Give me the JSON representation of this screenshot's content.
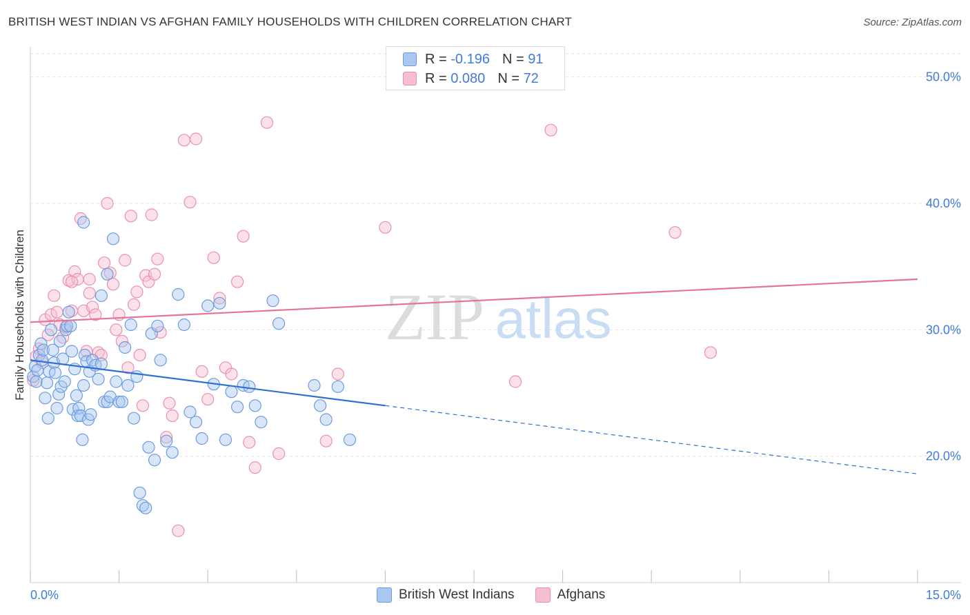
{
  "title": "BRITISH WEST INDIAN VS AFGHAN FAMILY HOUSEHOLDS WITH CHILDREN CORRELATION CHART",
  "source": "Source: ZipAtlas.com",
  "watermark": {
    "zip": "ZIP",
    "atlas": "atlas"
  },
  "legend": {
    "rows": [
      {
        "r_label": "R =",
        "r_value": "-0.196",
        "n_label": "N =",
        "n_value": "91"
      },
      {
        "r_label": "R =",
        "r_value": "0.080",
        "n_label": "N =",
        "n_value": "72"
      }
    ]
  },
  "colors": {
    "blue_fill": "#a9c7f0",
    "blue_stroke": "#6b9be0",
    "blue_line": "#2e6fd3",
    "pink_fill": "#f6bfd0",
    "pink_stroke": "#ea8fae",
    "pink_line": "#e5739a",
    "tick_label": "#3f7bd8",
    "grid": "#e3e3e3"
  },
  "chart_data": {
    "type": "scatter",
    "title": "BRITISH WEST INDIAN VS AFGHAN FAMILY HOUSEHOLDS WITH CHILDREN CORRELATION CHART",
    "xlabel": "",
    "ylabel": "Family Households with Children",
    "xlim": [
      0,
      15
    ],
    "ylim": [
      10,
      52
    ],
    "x_tick_labels": [
      "0.0%",
      "15.0%"
    ],
    "y_ticks": [
      20,
      30,
      40,
      50
    ],
    "y_tick_labels": [
      "20.0%",
      "30.0%",
      "40.0%",
      "50.0%"
    ],
    "grid": true,
    "legend_position": "top-center",
    "series": [
      {
        "name": "British West Indians",
        "color": "#a9c7f0",
        "trend": {
          "x0": 0,
          "y0": 27.6,
          "x1": 15,
          "y1": 18.6,
          "solid_until_x": 6.0
        },
        "points": [
          [
            0.05,
            26.3
          ],
          [
            0.08,
            27.1
          ],
          [
            0.1,
            25.9
          ],
          [
            0.12,
            26.8
          ],
          [
            0.15,
            28.0
          ],
          [
            0.18,
            28.9
          ],
          [
            0.2,
            27.6
          ],
          [
            0.22,
            28.4
          ],
          [
            0.25,
            24.6
          ],
          [
            0.28,
            25.8
          ],
          [
            0.3,
            23.0
          ],
          [
            0.32,
            26.7
          ],
          [
            0.35,
            30.0
          ],
          [
            0.38,
            28.4
          ],
          [
            0.4,
            27.4
          ],
          [
            0.42,
            26.6
          ],
          [
            0.45,
            23.8
          ],
          [
            0.48,
            24.9
          ],
          [
            0.5,
            29.1
          ],
          [
            0.52,
            25.5
          ],
          [
            0.55,
            27.7
          ],
          [
            0.58,
            25.9
          ],
          [
            0.6,
            30.0
          ],
          [
            0.62,
            30.3
          ],
          [
            0.65,
            31.4
          ],
          [
            0.68,
            30.3
          ],
          [
            0.7,
            28.3
          ],
          [
            0.72,
            23.7
          ],
          [
            0.75,
            26.9
          ],
          [
            0.78,
            24.8
          ],
          [
            0.8,
            23.2
          ],
          [
            0.82,
            23.8
          ],
          [
            0.85,
            23.2
          ],
          [
            0.88,
            21.3
          ],
          [
            0.9,
            25.6
          ],
          [
            0.92,
            28.0
          ],
          [
            0.95,
            27.5
          ],
          [
            0.98,
            22.9
          ],
          [
            1.0,
            26.7
          ],
          [
            1.02,
            23.3
          ],
          [
            1.05,
            27.6
          ],
          [
            1.1,
            27.2
          ],
          [
            1.15,
            26.1
          ],
          [
            1.2,
            27.3
          ],
          [
            1.25,
            24.3
          ],
          [
            1.3,
            24.3
          ],
          [
            1.35,
            24.7
          ],
          [
            1.4,
            37.2
          ],
          [
            1.45,
            25.9
          ],
          [
            1.5,
            24.3
          ],
          [
            1.55,
            24.3
          ],
          [
            1.6,
            28.6
          ],
          [
            1.65,
            25.6
          ],
          [
            1.7,
            30.4
          ],
          [
            1.75,
            23.0
          ],
          [
            1.8,
            26.3
          ],
          [
            1.85,
            17.1
          ],
          [
            1.9,
            16.1
          ],
          [
            1.95,
            15.9
          ],
          [
            2.0,
            20.7
          ],
          [
            2.05,
            29.7
          ],
          [
            2.1,
            19.7
          ],
          [
            2.15,
            30.3
          ],
          [
            2.2,
            27.6
          ],
          [
            2.3,
            21.2
          ],
          [
            2.4,
            20.3
          ],
          [
            2.5,
            32.8
          ],
          [
            2.6,
            30.4
          ],
          [
            2.7,
            23.5
          ],
          [
            2.8,
            22.7
          ],
          [
            2.9,
            21.4
          ],
          [
            3.0,
            31.9
          ],
          [
            3.1,
            25.7
          ],
          [
            3.2,
            32.1
          ],
          [
            3.3,
            21.3
          ],
          [
            3.4,
            25.1
          ],
          [
            3.5,
            23.9
          ],
          [
            3.6,
            25.6
          ],
          [
            3.7,
            25.5
          ],
          [
            3.8,
            24.0
          ],
          [
            3.9,
            22.7
          ],
          [
            4.1,
            32.3
          ],
          [
            4.2,
            30.5
          ],
          [
            4.8,
            25.6
          ],
          [
            4.9,
            24.0
          ],
          [
            5.0,
            22.9
          ],
          [
            5.2,
            25.5
          ],
          [
            5.4,
            21.3
          ],
          [
            1.3,
            34.4
          ],
          [
            1.2,
            32.7
          ],
          [
            0.9,
            38.5
          ]
        ]
      },
      {
        "name": "Afghans",
        "color": "#f6bfd0",
        "trend": {
          "x0": 0,
          "y0": 30.6,
          "x1": 15,
          "y1": 34.0
        },
        "points": [
          [
            0.05,
            26.0
          ],
          [
            0.1,
            27.9
          ],
          [
            0.15,
            28.5
          ],
          [
            0.2,
            27.4
          ],
          [
            0.25,
            30.8
          ],
          [
            0.3,
            29.6
          ],
          [
            0.35,
            31.2
          ],
          [
            0.4,
            32.7
          ],
          [
            0.45,
            31.4
          ],
          [
            0.5,
            30.4
          ],
          [
            0.55,
            29.4
          ],
          [
            0.6,
            30.2
          ],
          [
            0.65,
            33.9
          ],
          [
            0.7,
            31.5
          ],
          [
            0.75,
            34.6
          ],
          [
            0.8,
            34.0
          ],
          [
            0.85,
            38.8
          ],
          [
            0.9,
            31.5
          ],
          [
            0.95,
            28.3
          ],
          [
            1.0,
            32.9
          ],
          [
            1.05,
            31.8
          ],
          [
            1.1,
            31.2
          ],
          [
            1.15,
            28.2
          ],
          [
            1.2,
            28.0
          ],
          [
            1.25,
            35.3
          ],
          [
            1.3,
            40.0
          ],
          [
            1.35,
            34.5
          ],
          [
            1.4,
            33.6
          ],
          [
            1.45,
            30.0
          ],
          [
            1.5,
            31.2
          ],
          [
            1.55,
            29.1
          ],
          [
            1.6,
            35.5
          ],
          [
            1.65,
            27.0
          ],
          [
            1.7,
            39.0
          ],
          [
            1.75,
            32.0
          ],
          [
            1.8,
            33.0
          ],
          [
            1.85,
            28.0
          ],
          [
            1.9,
            24.0
          ],
          [
            1.95,
            34.3
          ],
          [
            2.0,
            33.8
          ],
          [
            2.05,
            39.1
          ],
          [
            2.1,
            34.4
          ],
          [
            2.15,
            35.6
          ],
          [
            2.2,
            29.8
          ],
          [
            2.3,
            21.5
          ],
          [
            2.35,
            24.2
          ],
          [
            2.4,
            23.2
          ],
          [
            2.5,
            14.1
          ],
          [
            2.6,
            45.0
          ],
          [
            2.7,
            40.1
          ],
          [
            2.8,
            45.1
          ],
          [
            2.9,
            26.7
          ],
          [
            3.0,
            24.5
          ],
          [
            3.1,
            35.7
          ],
          [
            3.2,
            32.5
          ],
          [
            3.3,
            27.0
          ],
          [
            3.4,
            26.5
          ],
          [
            3.5,
            33.8
          ],
          [
            3.6,
            37.4
          ],
          [
            3.7,
            21.1
          ],
          [
            3.8,
            19.1
          ],
          [
            4.0,
            46.4
          ],
          [
            4.2,
            20.2
          ],
          [
            5.0,
            21.2
          ],
          [
            5.2,
            26.5
          ],
          [
            6.0,
            38.1
          ],
          [
            8.2,
            25.9
          ],
          [
            8.8,
            45.8
          ],
          [
            10.9,
            37.7
          ],
          [
            11.5,
            28.2
          ],
          [
            1.0,
            34.0
          ],
          [
            0.7,
            33.8
          ]
        ]
      }
    ]
  }
}
